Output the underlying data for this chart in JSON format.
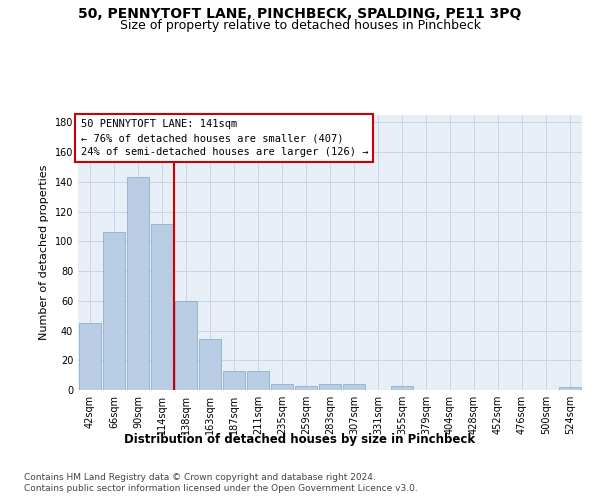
{
  "title1": "50, PENNYTOFT LANE, PINCHBECK, SPALDING, PE11 3PQ",
  "title2": "Size of property relative to detached houses in Pinchbeck",
  "xlabel": "Distribution of detached houses by size in Pinchbeck",
  "ylabel": "Number of detached properties",
  "bar_labels": [
    "42sqm",
    "66sqm",
    "90sqm",
    "114sqm",
    "138sqm",
    "163sqm",
    "187sqm",
    "211sqm",
    "235sqm",
    "259sqm",
    "283sqm",
    "307sqm",
    "331sqm",
    "355sqm",
    "379sqm",
    "404sqm",
    "428sqm",
    "452sqm",
    "476sqm",
    "500sqm",
    "524sqm"
  ],
  "bar_heights": [
    45,
    106,
    143,
    112,
    60,
    34,
    13,
    13,
    4,
    3,
    4,
    4,
    0,
    3,
    0,
    0,
    0,
    0,
    0,
    0,
    2
  ],
  "bar_color": "#b8cce4",
  "bar_edge_color": "#7fa8c8",
  "ylim": [
    0,
    185
  ],
  "yticks": [
    0,
    20,
    40,
    60,
    80,
    100,
    120,
    140,
    160,
    180
  ],
  "grid_color": "#c8d4e8",
  "bg_color": "#e8eef6",
  "property_line_x": 4,
  "property_line_label": "50 PENNYTOFT LANE: 141sqm",
  "annotation_line1": "← 76% of detached houses are smaller (407)",
  "annotation_line2": "24% of semi-detached houses are larger (126) →",
  "annotation_box_color": "#ffffff",
  "annotation_box_edge": "#cc0000",
  "vline_color": "#cc0000",
  "footer_line1": "Contains HM Land Registry data © Crown copyright and database right 2024.",
  "footer_line2": "Contains public sector information licensed under the Open Government Licence v3.0.",
  "title1_fontsize": 10,
  "title2_fontsize": 9,
  "xlabel_fontsize": 8.5,
  "ylabel_fontsize": 8,
  "tick_fontsize": 7,
  "footer_fontsize": 6.5,
  "ann_fontsize": 7.5
}
